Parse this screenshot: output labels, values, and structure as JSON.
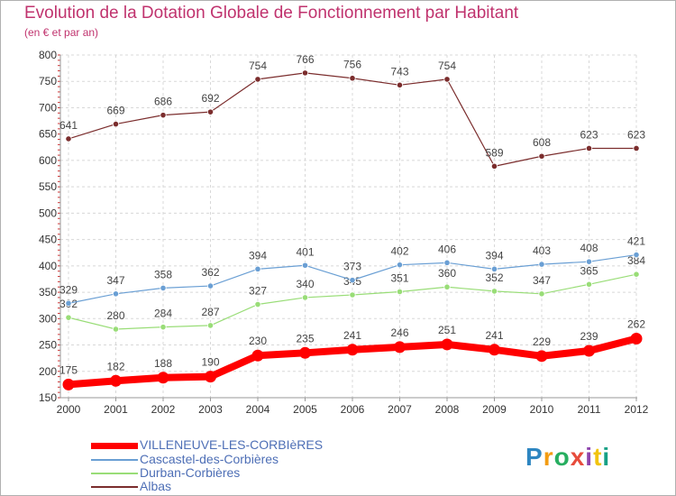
{
  "title": "Evolution de la Dotation Globale de Fonctionnement par Habitant",
  "subtitle": "(en € et par an)",
  "logo": {
    "text": "Proxiti",
    "colors": [
      "#2e86c1",
      "#f39c12",
      "#27ae60",
      "#e74c3c",
      "#8e44ad",
      "#f1c40f",
      "#16a085"
    ]
  },
  "chart_data": {
    "type": "line",
    "title": "Evolution de la Dotation Globale de Fonctionnement par Habitant",
    "subtitle": "(en € et par an)",
    "xlabel": "",
    "ylabel": "",
    "categories": [
      "2000",
      "2001",
      "2002",
      "2003",
      "2004",
      "2005",
      "2006",
      "2007",
      "2008",
      "2009",
      "2010",
      "2011",
      "2012"
    ],
    "ylim": [
      150,
      800
    ],
    "yticks": [
      150,
      200,
      250,
      300,
      350,
      400,
      450,
      500,
      550,
      600,
      650,
      700,
      750,
      800
    ],
    "grid": true,
    "legend_position": "bottom-left",
    "series": [
      {
        "name": "VILLENEUVE-LES-CORBIèRES",
        "color": "#ff0000",
        "values": [
          175,
          182,
          188,
          190,
          230,
          235,
          241,
          246,
          251,
          241,
          229,
          239,
          262
        ]
      },
      {
        "name": "Cascastel-des-Corbières",
        "color": "#6a9fd4",
        "values": [
          329,
          347,
          358,
          362,
          394,
          401,
          373,
          402,
          406,
          394,
          403,
          408,
          421
        ]
      },
      {
        "name": "Durban-Corbières",
        "color": "#99dd77",
        "values": [
          302,
          280,
          284,
          287,
          327,
          340,
          345,
          351,
          360,
          352,
          347,
          365,
          384
        ]
      },
      {
        "name": "Albas",
        "color": "#7b2d2d",
        "values": [
          641,
          669,
          686,
          692,
          754,
          766,
          756,
          743,
          754,
          589,
          608,
          623,
          623
        ]
      }
    ]
  }
}
